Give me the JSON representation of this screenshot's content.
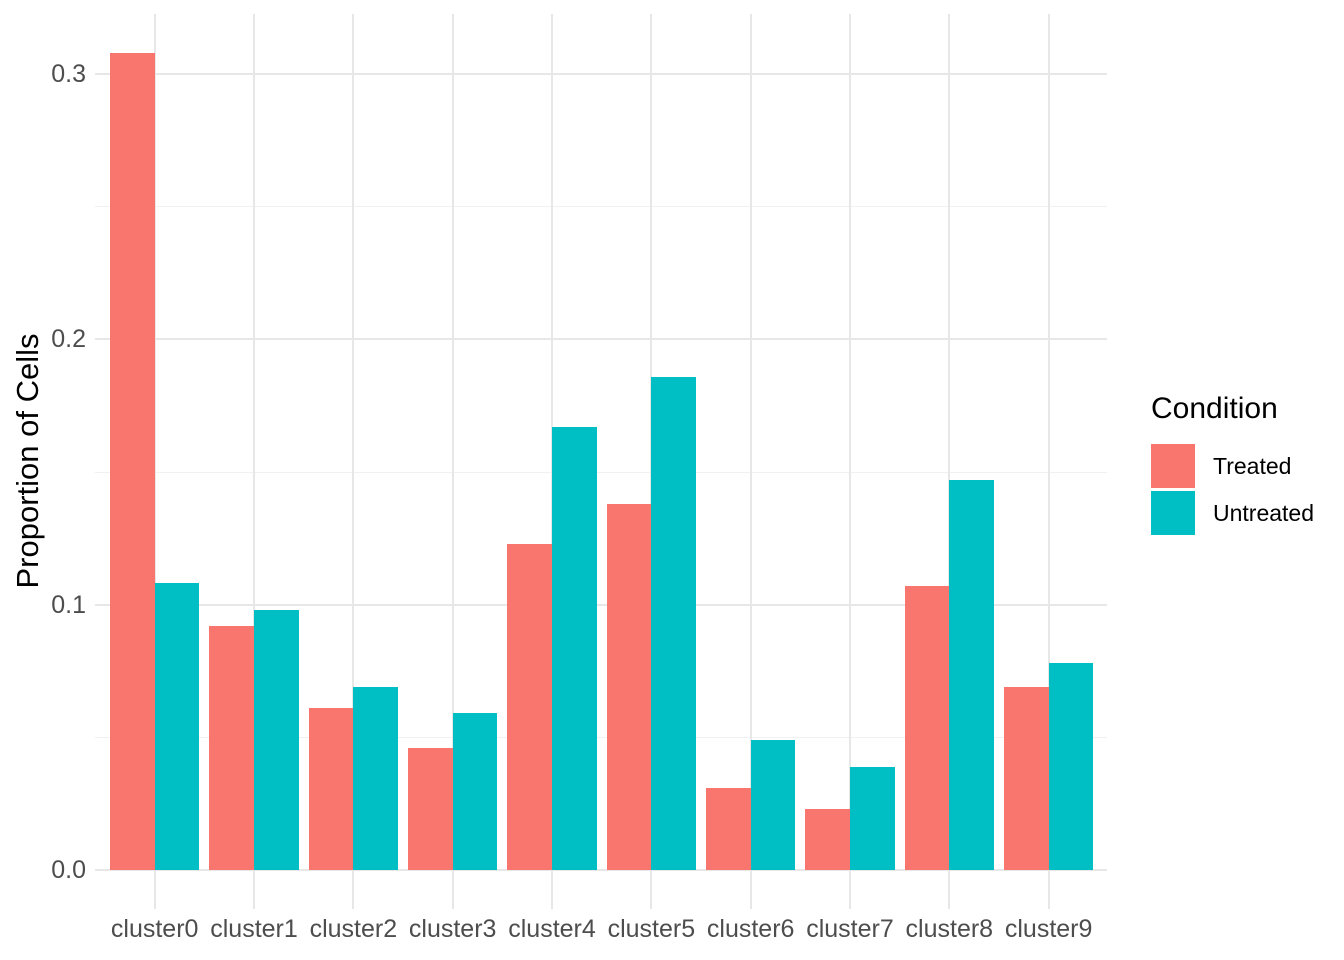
{
  "chart_data": {
    "type": "bar",
    "title": "",
    "xlabel": "",
    "ylabel": "Proportion of Cells",
    "categories": [
      "cluster0",
      "cluster1",
      "cluster2",
      "cluster3",
      "cluster4",
      "cluster5",
      "cluster6",
      "cluster7",
      "cluster8",
      "cluster9"
    ],
    "series": [
      {
        "name": "Treated",
        "color": "#F8766D",
        "values": [
          0.308,
          0.092,
          0.061,
          0.046,
          0.123,
          0.138,
          0.031,
          0.023,
          0.107,
          0.069
        ]
      },
      {
        "name": "Untreated",
        "color": "#00BFC4",
        "values": [
          0.108,
          0.098,
          0.069,
          0.059,
          0.167,
          0.186,
          0.049,
          0.039,
          0.147,
          0.078
        ]
      }
    ],
    "ylim": [
      0,
      0.324
    ],
    "yticks": {
      "values": [
        0,
        0.1,
        0.2,
        0.3
      ],
      "labels": [
        "0.0",
        "0.1",
        "0.2",
        "0.3"
      ]
    },
    "yminor": [
      0.05,
      0.15,
      0.25
    ],
    "grid": {
      "show": true,
      "major_color": "#E7E7E7",
      "minor_color": "#F1F1F1"
    },
    "legend": {
      "title": "Condition",
      "position": "right"
    },
    "colors": {
      "background": "#FFFFFF",
      "axis_text": "#4D4D4D",
      "axis_title": "#000000"
    }
  }
}
